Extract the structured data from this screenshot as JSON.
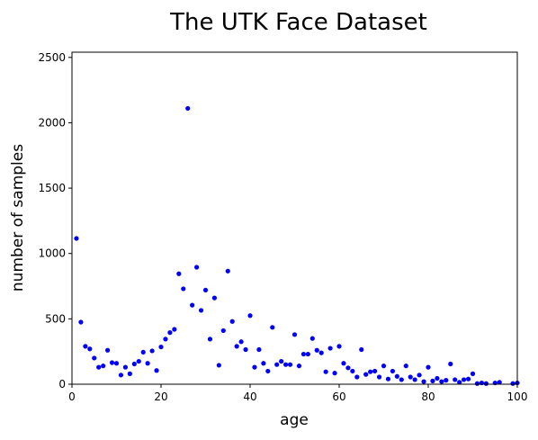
{
  "chart_data": {
    "type": "scatter",
    "title": "The UTK Face Dataset",
    "xlabel": "age",
    "ylabel": "number of samples",
    "xlim": [
      0,
      100
    ],
    "ylim": [
      0,
      2540
    ],
    "xticks": [
      "0",
      "20",
      "40",
      "60",
      "80",
      "100"
    ],
    "yticks": [
      "0",
      "500",
      "1000",
      "1500",
      "2000",
      "2500"
    ],
    "grid": false,
    "marker_color": "#0000ff",
    "series": [
      {
        "points": [
          [
            1,
            1115
          ],
          [
            2,
            475
          ],
          [
            3,
            290
          ],
          [
            4,
            270
          ],
          [
            5,
            200
          ],
          [
            6,
            130
          ],
          [
            7,
            140
          ],
          [
            8,
            260
          ],
          [
            9,
            165
          ],
          [
            10,
            160
          ],
          [
            11,
            70
          ],
          [
            12,
            130
          ],
          [
            13,
            80
          ],
          [
            14,
            155
          ],
          [
            15,
            175
          ],
          [
            16,
            245
          ],
          [
            17,
            160
          ],
          [
            18,
            255
          ],
          [
            19,
            105
          ],
          [
            20,
            285
          ],
          [
            21,
            345
          ],
          [
            22,
            395
          ],
          [
            23,
            420
          ],
          [
            24,
            845
          ],
          [
            25,
            730
          ],
          [
            26,
            2110
          ],
          [
            27,
            605
          ],
          [
            28,
            895
          ],
          [
            29,
            565
          ],
          [
            30,
            720
          ],
          [
            31,
            345
          ],
          [
            32,
            660
          ],
          [
            33,
            145
          ],
          [
            34,
            410
          ],
          [
            35,
            865
          ],
          [
            36,
            480
          ],
          [
            37,
            290
          ],
          [
            38,
            325
          ],
          [
            39,
            265
          ],
          [
            40,
            525
          ],
          [
            41,
            130
          ],
          [
            42,
            265
          ],
          [
            43,
            160
          ],
          [
            44,
            100
          ],
          [
            45,
            435
          ],
          [
            46,
            150
          ],
          [
            47,
            175
          ],
          [
            48,
            150
          ],
          [
            49,
            150
          ],
          [
            50,
            380
          ],
          [
            51,
            140
          ],
          [
            52,
            230
          ],
          [
            53,
            230
          ],
          [
            54,
            350
          ],
          [
            55,
            260
          ],
          [
            56,
            240
          ],
          [
            57,
            95
          ],
          [
            58,
            275
          ],
          [
            59,
            85
          ],
          [
            60,
            290
          ],
          [
            61,
            160
          ],
          [
            62,
            125
          ],
          [
            63,
            100
          ],
          [
            64,
            55
          ],
          [
            65,
            265
          ],
          [
            66,
            75
          ],
          [
            67,
            95
          ],
          [
            68,
            100
          ],
          [
            69,
            55
          ],
          [
            70,
            140
          ],
          [
            71,
            40
          ],
          [
            72,
            100
          ],
          [
            73,
            60
          ],
          [
            74,
            35
          ],
          [
            75,
            140
          ],
          [
            76,
            55
          ],
          [
            77,
            35
          ],
          [
            78,
            70
          ],
          [
            79,
            20
          ],
          [
            80,
            130
          ],
          [
            81,
            25
          ],
          [
            82,
            45
          ],
          [
            83,
            20
          ],
          [
            84,
            30
          ],
          [
            85,
            155
          ],
          [
            86,
            35
          ],
          [
            87,
            15
          ],
          [
            88,
            35
          ],
          [
            89,
            40
          ],
          [
            90,
            80
          ],
          [
            91,
            5
          ],
          [
            92,
            10
          ],
          [
            93,
            5
          ],
          [
            95,
            10
          ],
          [
            96,
            15
          ],
          [
            99,
            5
          ],
          [
            100,
            10
          ]
        ]
      }
    ]
  }
}
